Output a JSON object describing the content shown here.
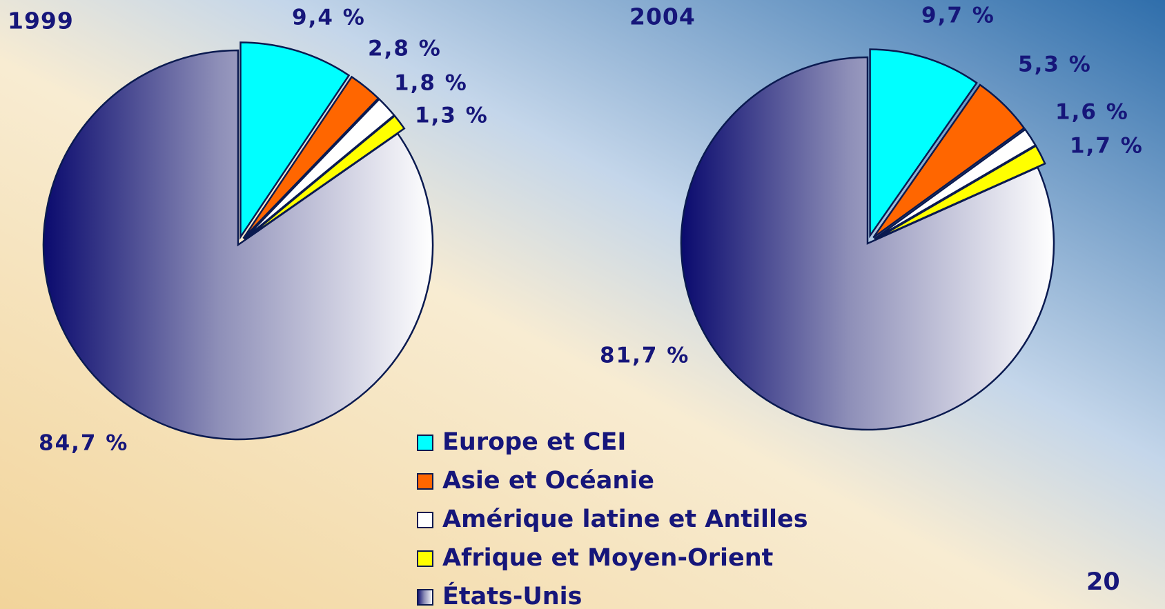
{
  "chart_data": [
    {
      "type": "pie",
      "title": "1999",
      "values": [
        9.4,
        2.8,
        1.8,
        1.3,
        84.7
      ],
      "value_labels": [
        "9,4 %",
        "2,8 %",
        "1,8 %",
        "1,3 %",
        "84,7 %"
      ]
    },
    {
      "type": "pie",
      "title": "2004",
      "values": [
        9.7,
        5.3,
        1.6,
        1.7,
        81.7
      ],
      "value_labels": [
        "9,7 %",
        "5,3 %",
        "1,6 %",
        "1,7 %",
        "81,7 %"
      ]
    }
  ],
  "legend": {
    "labels": [
      "Europe et CEI",
      "Asie et Océanie",
      "Amérique latine et Antilles",
      "Afrique et Moyen-Orient",
      "États-Unis"
    ],
    "colors": [
      "#00ffff",
      "#ff6600",
      "#ffffff",
      "#ffff00",
      "gradient"
    ]
  },
  "page_number": "20"
}
